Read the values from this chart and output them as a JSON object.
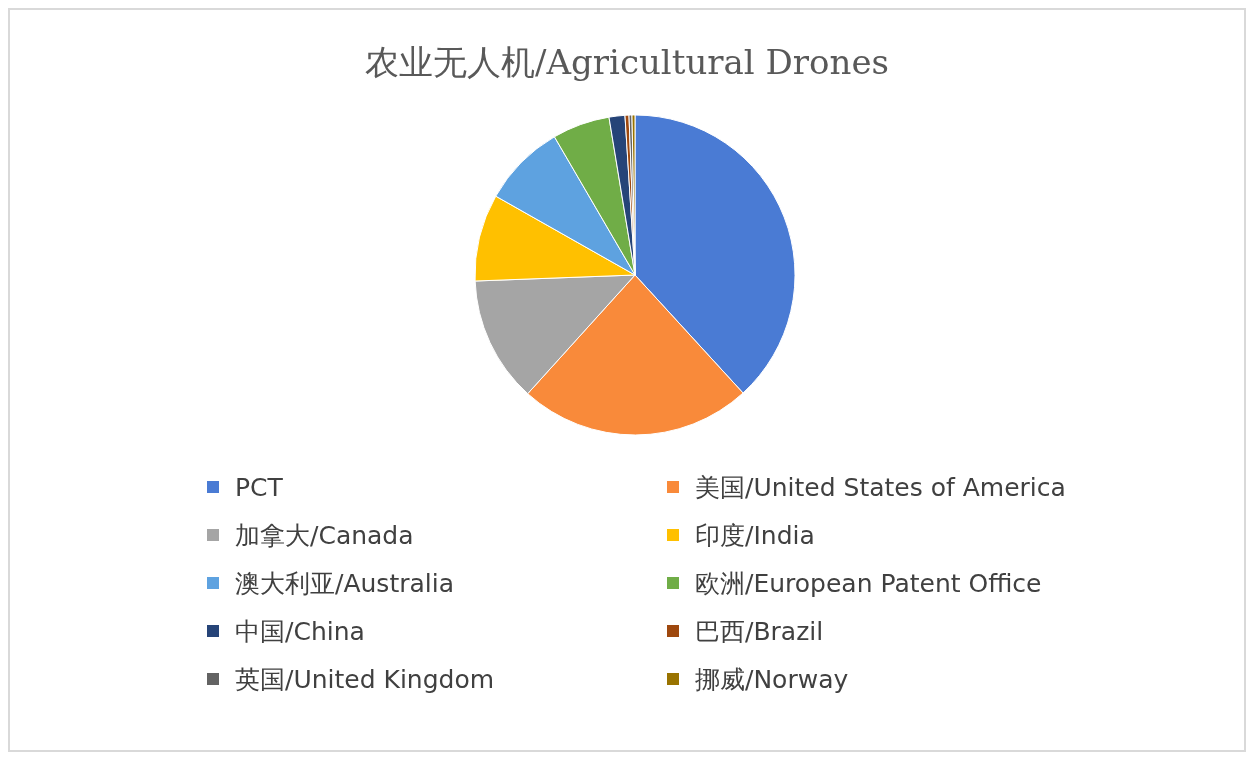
{
  "chart_data": {
    "type": "pie",
    "title": "农业无人机/Agricultural Drones",
    "categories": [
      "PCT",
      "美国/United States of America",
      "加拿大/Canada",
      "印度/India",
      "澳大利亚/Australia",
      "欧洲/European Patent Office",
      "中国/China",
      "巴西/Brazil",
      "英国/United Kingdom",
      "挪威/Norway"
    ],
    "values": [
      38.2,
      23.5,
      12.7,
      8.8,
      8.4,
      5.8,
      1.6,
      0.4,
      0.3,
      0.3
    ],
    "colors": [
      "#4a7bd4",
      "#f98a3a",
      "#a5a5a5",
      "#ffc000",
      "#5ea2e0",
      "#70ad47",
      "#264478",
      "#9e480e",
      "#636363",
      "#997300"
    ],
    "legend": "bottom"
  }
}
